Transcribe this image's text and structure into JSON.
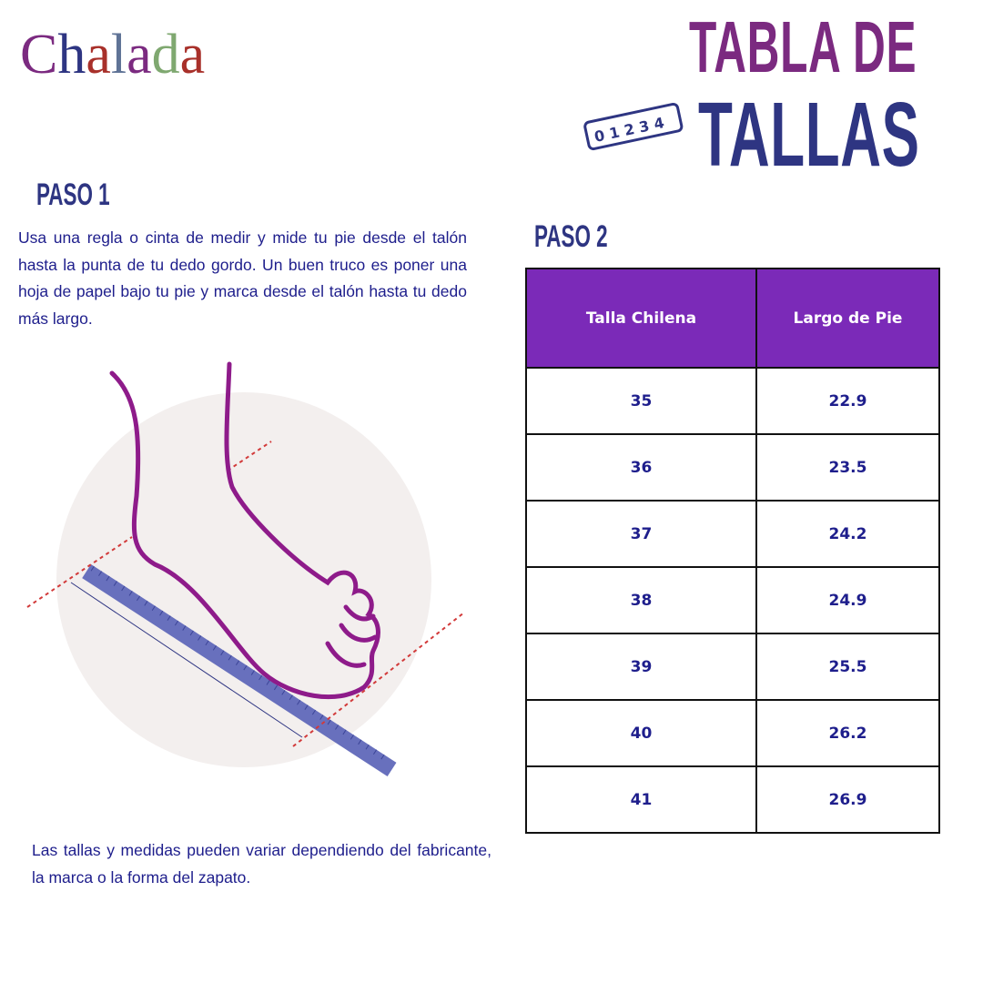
{
  "brand": {
    "logo_text": "Chalada",
    "letter_colors": [
      "#7b2a80",
      "#2e3582",
      "#a8302a",
      "#5f7396",
      "#7b2a80",
      "#7fa870",
      "#a8302a"
    ]
  },
  "title": {
    "line1": "TABLA DE",
    "line2": "TALLAS",
    "ruler_numbers": "0 1 2 3 4",
    "color1": "#7b2a80",
    "color2": "#2e3582"
  },
  "step1": {
    "heading": "PASO 1",
    "text": "Usa una regla o cinta de medir y mide tu pie desde el talón hasta la punta de tu dedo gordo. Un buen truco es poner una hoja de papel bajo tu pie y marca desde el talón hasta tu dedo más largo."
  },
  "step2": {
    "heading": "PASO 2",
    "table": {
      "headers": [
        "Talla Chilena",
        "Largo de Pie"
      ],
      "rows": [
        [
          "35",
          "22.9"
        ],
        [
          "36",
          "23.5"
        ],
        [
          "37",
          "24.2"
        ],
        [
          "38",
          "24.9"
        ],
        [
          "39",
          "25.5"
        ],
        [
          "40",
          "26.2"
        ],
        [
          "41",
          "26.9"
        ]
      ],
      "header_color": "#7b2ab8"
    }
  },
  "note": "Las tallas y medidas pueden variar dependiendo del fabricante, la marca o la forma del zapato."
}
